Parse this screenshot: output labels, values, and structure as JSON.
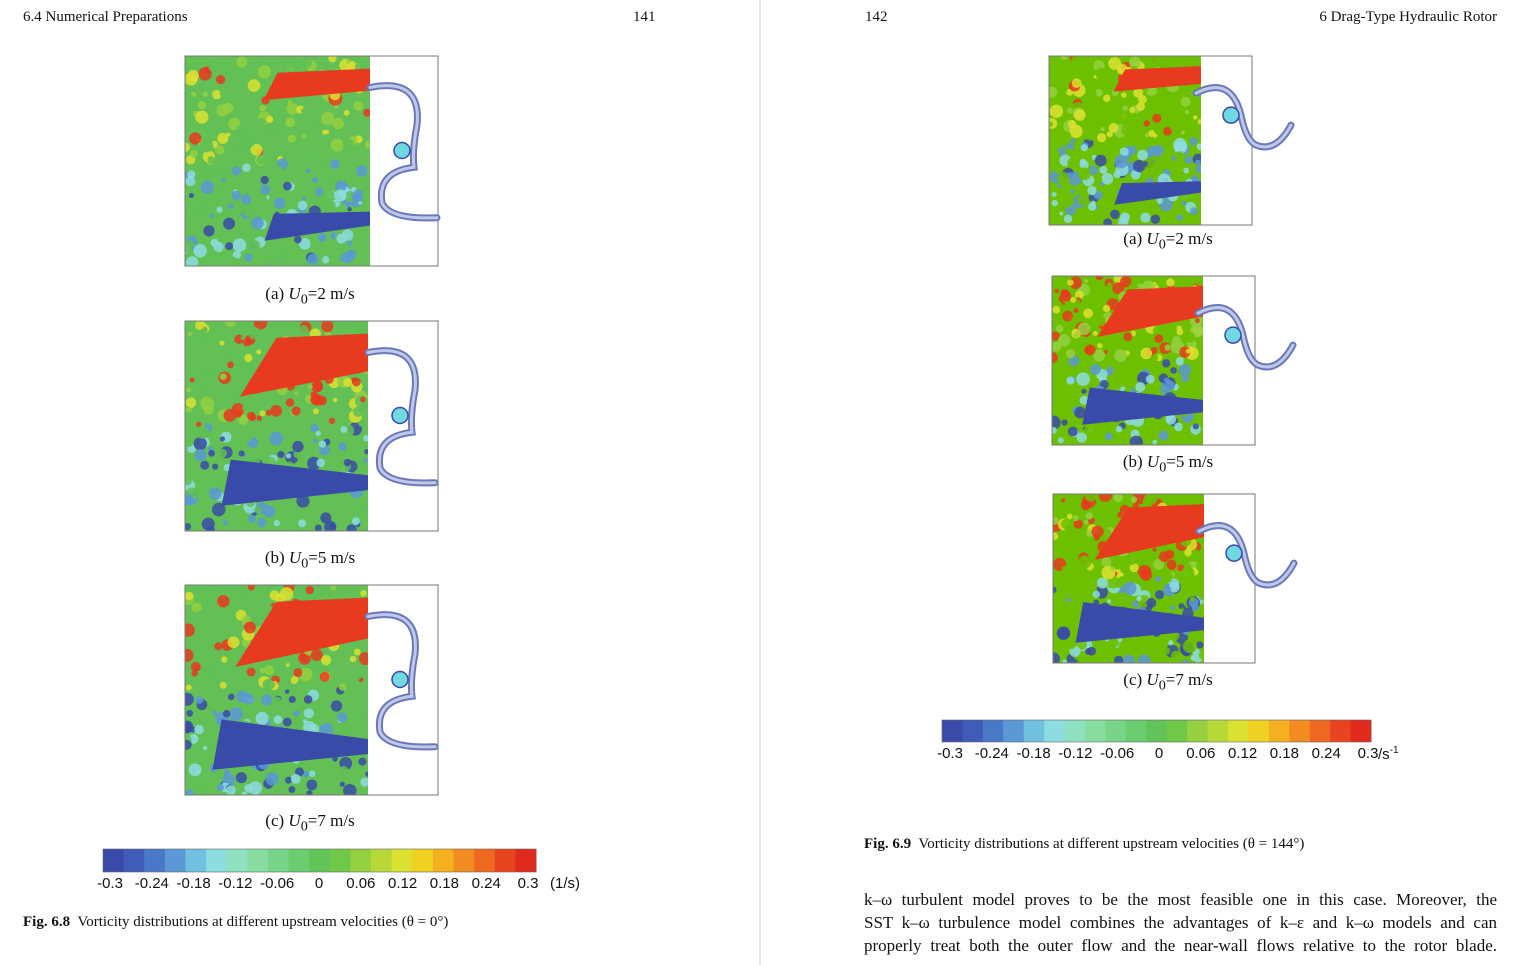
{
  "left_page": {
    "header_section": "6.4   Numerical Preparations",
    "page_number": "141",
    "figure": {
      "panels": [
        {
          "label": "(a)",
          "var": "U",
          "sub": "0",
          "value": "=2 m/s"
        },
        {
          "label": "(b)",
          "var": "U",
          "sub": "0",
          "value": "=5 m/s"
        },
        {
          "label": "(c)",
          "var": "U",
          "sub": "0",
          "value": "=7 m/s"
        }
      ],
      "colorbar": {
        "ticks": [
          "-0.3",
          "-0.24",
          "-0.18",
          "-0.12",
          "-0.06",
          "0",
          "0.06",
          "0.12",
          "0.18",
          "0.24",
          "0.3"
        ],
        "unit": "(1/s)"
      },
      "caption": {
        "label": "Fig. 6.8",
        "text": "Vorticity distributions at different upstream velocities (θ = 0°)"
      }
    }
  },
  "right_page": {
    "page_number": "142",
    "header_chapter": "6   Drag-Type Hydraulic Rotor",
    "figure": {
      "panels": [
        {
          "label": "(a)",
          "var": "U",
          "sub": "0",
          "value": "=2 m/s"
        },
        {
          "label": "(b)",
          "var": "U",
          "sub": "0",
          "value": "=5 m/s"
        },
        {
          "label": "(c)",
          "var": "U",
          "sub": "0",
          "value": "=7 m/s"
        }
      ],
      "colorbar": {
        "ticks": [
          "-0.3",
          "-0.24",
          "-0.18",
          "-0.12",
          "-0.06",
          "0",
          "0.06",
          "0.12",
          "0.18",
          "0.24",
          "0.3"
        ],
        "unit": "/s",
        "unit_sup": "-1"
      },
      "caption": {
        "label": "Fig. 6.9",
        "text": "Vorticity distributions at different upstream velocities (θ = 144°)"
      }
    },
    "body": [
      "k–ω turbulent model proves to be the most feasible one in this case. Moreover, the",
      "SST k–ω turbulence model combines the advantages of k–ε and k–ω models and can",
      "properly treat both the outer flow and the near-wall flows relative to the rotor blade."
    ]
  }
}
